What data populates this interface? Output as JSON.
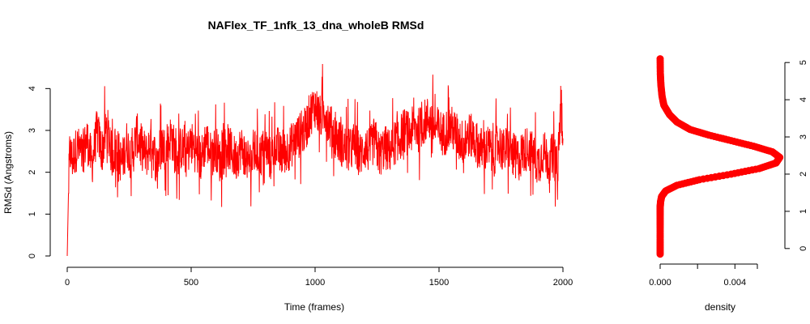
{
  "chart_data": [
    {
      "type": "line",
      "title": "NAFlex_TF_1nfk_13_dna_wholeB RMSd",
      "xlabel": "Time (frames)",
      "ylabel": "RMSd (Angstroms)",
      "xlim": [
        0,
        2000
      ],
      "ylim": [
        0,
        4.8
      ],
      "x_ticks": [
        0,
        500,
        1000,
        1500,
        2000
      ],
      "y_ticks": [
        0,
        1,
        2,
        3,
        4
      ],
      "x_tick_labels": [
        "0",
        "500",
        "1000",
        "1500",
        "2000"
      ],
      "y_tick_labels": [
        "0",
        "1",
        "2",
        "3",
        "4"
      ],
      "grid": false,
      "color": "#ff0000",
      "series": [
        {
          "x": [
            0,
            5,
            10,
            20,
            40,
            60,
            80,
            100,
            120,
            140,
            160,
            180,
            200,
            220,
            240,
            260,
            280,
            300,
            320,
            340,
            360,
            380,
            400,
            420,
            440,
            460,
            480,
            500,
            520,
            540,
            560,
            580,
            600,
            620,
            640,
            660,
            680,
            700,
            720,
            740,
            760,
            780,
            800,
            820,
            840,
            860,
            880,
            900,
            920,
            940,
            960,
            980,
            1000,
            1020,
            1040,
            1060,
            1080,
            1100,
            1120,
            1140,
            1160,
            1180,
            1200,
            1220,
            1240,
            1260,
            1280,
            1300,
            1320,
            1340,
            1360,
            1380,
            1400,
            1420,
            1440,
            1460,
            1480,
            1500,
            1520,
            1540,
            1560,
            1580,
            1600,
            1620,
            1640,
            1660,
            1680,
            1700,
            1720,
            1740,
            1760,
            1780,
            1800,
            1820,
            1840,
            1860,
            1880,
            1900,
            1920,
            1940,
            1960,
            1980,
            1995,
            2000
          ],
          "values": [
            0.0,
            1.5,
            2.5,
            2.3,
            2.6,
            2.4,
            2.8,
            2.2,
            3.0,
            2.5,
            3.1,
            2.4,
            2.6,
            2.2,
            2.7,
            2.3,
            2.9,
            2.6,
            2.4,
            2.8,
            2.2,
            2.7,
            2.5,
            2.9,
            2.3,
            2.6,
            2.4,
            2.7,
            2.5,
            2.3,
            2.8,
            2.4,
            2.6,
            2.2,
            2.7,
            2.5,
            2.3,
            2.6,
            2.4,
            2.2,
            2.5,
            2.4,
            2.6,
            2.3,
            2.7,
            2.4,
            2.5,
            2.6,
            2.8,
            2.9,
            3.0,
            3.4,
            3.6,
            3.3,
            3.5,
            3.1,
            2.9,
            2.7,
            2.6,
            2.5,
            2.7,
            2.4,
            2.6,
            2.5,
            2.8,
            2.4,
            2.6,
            2.5,
            2.7,
            2.8,
            3.0,
            2.9,
            3.1,
            3.0,
            3.2,
            3.3,
            3.1,
            3.0,
            2.9,
            3.1,
            3.0,
            2.8,
            2.7,
            2.9,
            2.8,
            2.6,
            2.5,
            2.6,
            2.4,
            2.7,
            2.5,
            2.6,
            2.4,
            2.3,
            2.5,
            2.6,
            2.4,
            2.2,
            2.5,
            2.3,
            2.4,
            2.2,
            4.2,
            2.8
          ]
        }
      ]
    },
    {
      "type": "line",
      "xlabel": "density",
      "ylabel": "",
      "xlim": [
        0,
        0.0065
      ],
      "ylim": [
        -0.2,
        5.2
      ],
      "x_ticks": [
        0.0,
        0.004
      ],
      "x_tick_labels": [
        "0.000",
        "0.004"
      ],
      "y_ticks": [
        0,
        1,
        2,
        3,
        4,
        5
      ],
      "y_tick_labels": [
        "0",
        "1",
        "2",
        "3",
        "4",
        "5"
      ],
      "y_axis_position": "right",
      "grid": false,
      "color": "#ff0000",
      "series": [
        {
          "x": [
            0.0,
            0.0,
            0.0,
            0.0,
            0.0,
            2e-05,
            8e-05,
            0.0003,
            0.0009,
            0.0021,
            0.0038,
            0.0053,
            0.0062,
            0.0064,
            0.006,
            0.005,
            0.0038,
            0.0026,
            0.0016,
            0.0009,
            0.0005,
            0.0002,
            0.0001,
            4e-05,
            1e-05,
            0.0
          ],
          "values": [
            -0.15,
            0.2,
            0.6,
            0.9,
            1.1,
            1.25,
            1.4,
            1.55,
            1.7,
            1.85,
            2.0,
            2.15,
            2.3,
            2.45,
            2.6,
            2.75,
            2.9,
            3.05,
            3.2,
            3.4,
            3.6,
            3.85,
            4.1,
            4.4,
            4.7,
            5.1
          ]
        }
      ]
    }
  ]
}
